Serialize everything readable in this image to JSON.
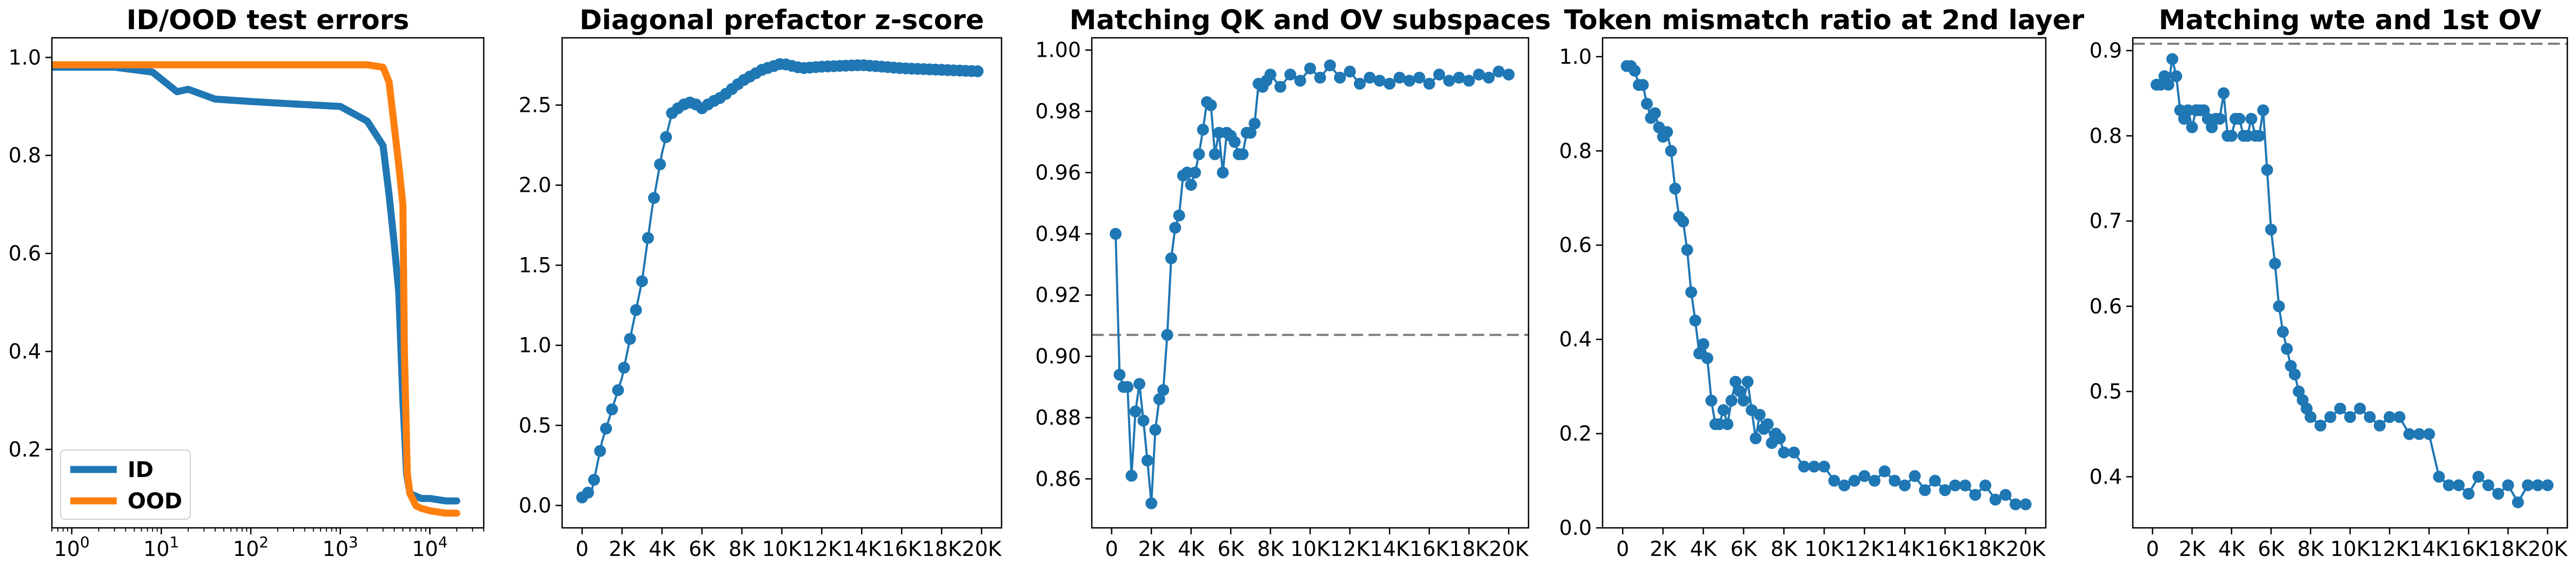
{
  "colors": {
    "blue": "#1f77b4",
    "orange": "#ff7f0e",
    "refline": "#808080",
    "axis": "#000000"
  },
  "chart_data": [
    {
      "type": "line",
      "title": "ID/OOD test errors",
      "xscale": "log",
      "xlim": [
        0.6,
        40000
      ],
      "ylim": [
        0.04,
        1.04
      ],
      "x_ticks": [
        {
          "v": 1,
          "b": "10",
          "e": "0"
        },
        {
          "v": 10,
          "b": "10",
          "e": "1"
        },
        {
          "v": 100,
          "b": "10",
          "e": "2"
        },
        {
          "v": 1000,
          "b": "10",
          "e": "3"
        },
        {
          "v": 10000,
          "b": "10",
          "e": "4"
        }
      ],
      "y_ticks": [
        {
          "v": 0.2,
          "label": "0.2"
        },
        {
          "v": 0.4,
          "label": "0.4"
        },
        {
          "v": 0.6,
          "label": "0.6"
        },
        {
          "v": 0.8,
          "label": "0.8"
        },
        {
          "v": 1.0,
          "label": "1.0"
        }
      ],
      "legend": {
        "placement": "lower-left",
        "entries": [
          "ID",
          "OOD"
        ]
      },
      "series": [
        {
          "name": "ID",
          "color": "#1f77b4",
          "x": [
            0.6,
            1,
            3,
            8,
            15,
            20,
            40,
            100,
            300,
            1000,
            2000,
            3000,
            3500,
            4000,
            4500,
            5000,
            5500,
            6000,
            8000,
            10000,
            15000,
            20000
          ],
          "y": [
            0.98,
            0.98,
            0.98,
            0.97,
            0.93,
            0.935,
            0.915,
            0.91,
            0.905,
            0.9,
            0.87,
            0.82,
            0.72,
            0.62,
            0.52,
            0.3,
            0.15,
            0.11,
            0.1,
            0.1,
            0.095,
            0.095
          ]
        },
        {
          "name": "OOD",
          "color": "#ff7f0e",
          "x": [
            0.6,
            10,
            100,
            1000,
            2000,
            3000,
            3500,
            4000,
            4500,
            5000,
            5200,
            5600,
            6000,
            7000,
            8000,
            10000,
            15000,
            20000
          ],
          "y": [
            0.985,
            0.985,
            0.985,
            0.985,
            0.985,
            0.98,
            0.95,
            0.86,
            0.78,
            0.7,
            0.4,
            0.15,
            0.11,
            0.085,
            0.08,
            0.075,
            0.07,
            0.07
          ]
        }
      ]
    },
    {
      "type": "line",
      "title": "Diagonal prefactor z-score",
      "xlim": [
        -1000,
        21000
      ],
      "ylim": [
        -0.14,
        2.92
      ],
      "x_ticks": [
        {
          "v": 0,
          "label": "0"
        },
        {
          "v": 2000,
          "label": "2K"
        },
        {
          "v": 4000,
          "label": "4K"
        },
        {
          "v": 6000,
          "label": "6K"
        },
        {
          "v": 8000,
          "label": "8K"
        },
        {
          "v": 10000,
          "label": "10K"
        },
        {
          "v": 12000,
          "label": "12K"
        },
        {
          "v": 14000,
          "label": "14K"
        },
        {
          "v": 16000,
          "label": "16K"
        },
        {
          "v": 18000,
          "label": "18K"
        },
        {
          "v": 20000,
          "label": "20K"
        }
      ],
      "y_ticks": [
        {
          "v": 0.0,
          "label": "0.0"
        },
        {
          "v": 0.5,
          "label": "0.5"
        },
        {
          "v": 1.0,
          "label": "1.0"
        },
        {
          "v": 1.5,
          "label": "1.5"
        },
        {
          "v": 2.0,
          "label": "2.0"
        },
        {
          "v": 2.5,
          "label": "2.5"
        }
      ],
      "series": [
        {
          "color": "#1f77b4",
          "markers": true,
          "marker_step": 300,
          "x": [
            0,
            500,
            1000,
            1500,
            2000,
            2500,
            3000,
            3500,
            4000,
            4500,
            5000,
            5500,
            6000,
            6500,
            7000,
            8000,
            9000,
            10000,
            11000,
            12000,
            14000,
            16000,
            18000,
            20000
          ],
          "y": [
            0.05,
            0.1,
            0.4,
            0.6,
            0.8,
            1.1,
            1.4,
            1.85,
            2.2,
            2.45,
            2.5,
            2.52,
            2.48,
            2.52,
            2.55,
            2.65,
            2.72,
            2.76,
            2.73,
            2.74,
            2.75,
            2.73,
            2.72,
            2.71
          ]
        }
      ]
    },
    {
      "type": "line",
      "title": "Matching QK and OV subspaces",
      "xlim": [
        -1000,
        21000
      ],
      "ylim": [
        0.844,
        1.004
      ],
      "reference_line": 0.907,
      "x_ticks": [
        {
          "v": 0,
          "label": "0"
        },
        {
          "v": 2000,
          "label": "2K"
        },
        {
          "v": 4000,
          "label": "4K"
        },
        {
          "v": 6000,
          "label": "6K"
        },
        {
          "v": 8000,
          "label": "8K"
        },
        {
          "v": 10000,
          "label": "10K"
        },
        {
          "v": 12000,
          "label": "12K"
        },
        {
          "v": 14000,
          "label": "14K"
        },
        {
          "v": 16000,
          "label": "16K"
        },
        {
          "v": 18000,
          "label": "18K"
        },
        {
          "v": 20000,
          "label": "20K"
        }
      ],
      "y_ticks": [
        {
          "v": 0.86,
          "label": "0.86"
        },
        {
          "v": 0.88,
          "label": "0.88"
        },
        {
          "v": 0.9,
          "label": "0.90"
        },
        {
          "v": 0.92,
          "label": "0.92"
        },
        {
          "v": 0.94,
          "label": "0.94"
        },
        {
          "v": 0.96,
          "label": "0.96"
        },
        {
          "v": 0.98,
          "label": "0.98"
        },
        {
          "v": 1.0,
          "label": "1.00"
        }
      ],
      "series": [
        {
          "color": "#1f77b4",
          "markers": true,
          "marker_step": 1,
          "x": [
            200,
            400,
            600,
            800,
            1000,
            1200,
            1400,
            1600,
            1800,
            2000,
            2200,
            2400,
            2600,
            2800,
            3000,
            3200,
            3400,
            3600,
            3800,
            4000,
            4200,
            4400,
            4600,
            4800,
            5000,
            5200,
            5400,
            5600,
            5800,
            6000,
            6200,
            6400,
            6600,
            6800,
            7000,
            7200,
            7400,
            7600,
            7800,
            8000,
            8500,
            9000,
            9500,
            10000,
            10500,
            11000,
            11500,
            12000,
            12500,
            13000,
            13500,
            14000,
            14500,
            15000,
            15500,
            16000,
            16500,
            17000,
            17500,
            18000,
            18500,
            19000,
            19500,
            20000
          ],
          "y": [
            0.94,
            0.894,
            0.89,
            0.89,
            0.861,
            0.882,
            0.891,
            0.879,
            0.866,
            0.852,
            0.876,
            0.886,
            0.889,
            0.907,
            0.932,
            0.942,
            0.946,
            0.959,
            0.96,
            0.956,
            0.96,
            0.966,
            0.974,
            0.983,
            0.982,
            0.966,
            0.973,
            0.96,
            0.973,
            0.972,
            0.97,
            0.966,
            0.966,
            0.973,
            0.973,
            0.976,
            0.989,
            0.988,
            0.99,
            0.992,
            0.988,
            0.992,
            0.99,
            0.994,
            0.991,
            0.995,
            0.991,
            0.993,
            0.989,
            0.991,
            0.99,
            0.989,
            0.991,
            0.99,
            0.991,
            0.989,
            0.992,
            0.99,
            0.991,
            0.99,
            0.992,
            0.991,
            0.993,
            0.992
          ]
        }
      ]
    },
    {
      "type": "line",
      "title": "Token mismatch ratio at 2nd layer",
      "xlim": [
        -1000,
        21000
      ],
      "ylim": [
        0.0,
        1.04
      ],
      "x_ticks": [
        {
          "v": 0,
          "label": "0"
        },
        {
          "v": 2000,
          "label": "2K"
        },
        {
          "v": 4000,
          "label": "4K"
        },
        {
          "v": 6000,
          "label": "6K"
        },
        {
          "v": 8000,
          "label": "8K"
        },
        {
          "v": 10000,
          "label": "10K"
        },
        {
          "v": 12000,
          "label": "12K"
        },
        {
          "v": 14000,
          "label": "14K"
        },
        {
          "v": 16000,
          "label": "16K"
        },
        {
          "v": 18000,
          "label": "18K"
        },
        {
          "v": 20000,
          "label": "20K"
        }
      ],
      "y_ticks": [
        {
          "v": 0.0,
          "label": "0.0"
        },
        {
          "v": 0.2,
          "label": "0.2"
        },
        {
          "v": 0.4,
          "label": "0.4"
        },
        {
          "v": 0.6,
          "label": "0.6"
        },
        {
          "v": 0.8,
          "label": "0.8"
        },
        {
          "v": 1.0,
          "label": "1.0"
        }
      ],
      "series": [
        {
          "color": "#1f77b4",
          "markers": true,
          "marker_step": 1,
          "x": [
            200,
            400,
            600,
            800,
            1000,
            1200,
            1400,
            1600,
            1800,
            2000,
            2200,
            2400,
            2600,
            2800,
            3000,
            3200,
            3400,
            3600,
            3800,
            4000,
            4200,
            4400,
            4600,
            4800,
            5000,
            5200,
            5400,
            5600,
            5800,
            6000,
            6200,
            6400,
            6600,
            6800,
            7000,
            7200,
            7400,
            7600,
            7800,
            8000,
            8500,
            9000,
            9500,
            10000,
            10500,
            11000,
            11500,
            12000,
            12500,
            13000,
            13500,
            14000,
            14500,
            15000,
            15500,
            16000,
            16500,
            17000,
            17500,
            18000,
            18500,
            19000,
            19500,
            20000
          ],
          "y": [
            0.98,
            0.98,
            0.97,
            0.94,
            0.94,
            0.9,
            0.87,
            0.88,
            0.85,
            0.83,
            0.84,
            0.8,
            0.72,
            0.66,
            0.65,
            0.59,
            0.5,
            0.44,
            0.37,
            0.39,
            0.36,
            0.27,
            0.22,
            0.22,
            0.25,
            0.22,
            0.27,
            0.31,
            0.29,
            0.27,
            0.31,
            0.25,
            0.19,
            0.24,
            0.21,
            0.22,
            0.18,
            0.2,
            0.19,
            0.16,
            0.16,
            0.13,
            0.13,
            0.13,
            0.1,
            0.09,
            0.1,
            0.11,
            0.1,
            0.12,
            0.1,
            0.09,
            0.11,
            0.08,
            0.1,
            0.08,
            0.09,
            0.09,
            0.07,
            0.09,
            0.06,
            0.07,
            0.05,
            0.05
          ]
        }
      ]
    },
    {
      "type": "line",
      "title": "Matching wte and 1st OV",
      "xlim": [
        -1000,
        21000
      ],
      "ylim": [
        0.34,
        0.915
      ],
      "reference_line": 0.908,
      "x_ticks": [
        {
          "v": 0,
          "label": "0"
        },
        {
          "v": 2000,
          "label": "2K"
        },
        {
          "v": 4000,
          "label": "4K"
        },
        {
          "v": 6000,
          "label": "6K"
        },
        {
          "v": 8000,
          "label": "8K"
        },
        {
          "v": 10000,
          "label": "10K"
        },
        {
          "v": 12000,
          "label": "12K"
        },
        {
          "v": 14000,
          "label": "14K"
        },
        {
          "v": 16000,
          "label": "16K"
        },
        {
          "v": 18000,
          "label": "18K"
        },
        {
          "v": 20000,
          "label": "20K"
        }
      ],
      "y_ticks": [
        {
          "v": 0.4,
          "label": "0.4"
        },
        {
          "v": 0.5,
          "label": "0.5"
        },
        {
          "v": 0.6,
          "label": "0.6"
        },
        {
          "v": 0.7,
          "label": "0.7"
        },
        {
          "v": 0.8,
          "label": "0.8"
        },
        {
          "v": 0.9,
          "label": "0.9"
        }
      ],
      "series": [
        {
          "color": "#1f77b4",
          "markers": true,
          "marker_step": 1,
          "x": [
            200,
            400,
            600,
            800,
            1000,
            1200,
            1400,
            1600,
            1800,
            2000,
            2200,
            2400,
            2600,
            2800,
            3000,
            3200,
            3400,
            3600,
            3800,
            4000,
            4200,
            4400,
            4600,
            4800,
            5000,
            5200,
            5400,
            5600,
            5800,
            6000,
            6200,
            6400,
            6600,
            6800,
            7000,
            7200,
            7400,
            7600,
            7800,
            8000,
            8500,
            9000,
            9500,
            10000,
            10500,
            11000,
            11500,
            12000,
            12500,
            13000,
            13500,
            14000,
            14500,
            15000,
            15500,
            16000,
            16500,
            17000,
            17500,
            18000,
            18500,
            19000,
            19500,
            20000
          ],
          "y": [
            0.86,
            0.86,
            0.87,
            0.86,
            0.89,
            0.87,
            0.83,
            0.82,
            0.83,
            0.81,
            0.83,
            0.83,
            0.83,
            0.82,
            0.81,
            0.82,
            0.82,
            0.85,
            0.8,
            0.8,
            0.82,
            0.82,
            0.8,
            0.8,
            0.82,
            0.8,
            0.8,
            0.83,
            0.76,
            0.69,
            0.65,
            0.6,
            0.57,
            0.55,
            0.53,
            0.52,
            0.5,
            0.49,
            0.48,
            0.47,
            0.46,
            0.47,
            0.48,
            0.47,
            0.48,
            0.47,
            0.46,
            0.47,
            0.47,
            0.45,
            0.45,
            0.45,
            0.4,
            0.39,
            0.39,
            0.38,
            0.4,
            0.39,
            0.38,
            0.39,
            0.37,
            0.39,
            0.39,
            0.39
          ]
        }
      ]
    }
  ]
}
